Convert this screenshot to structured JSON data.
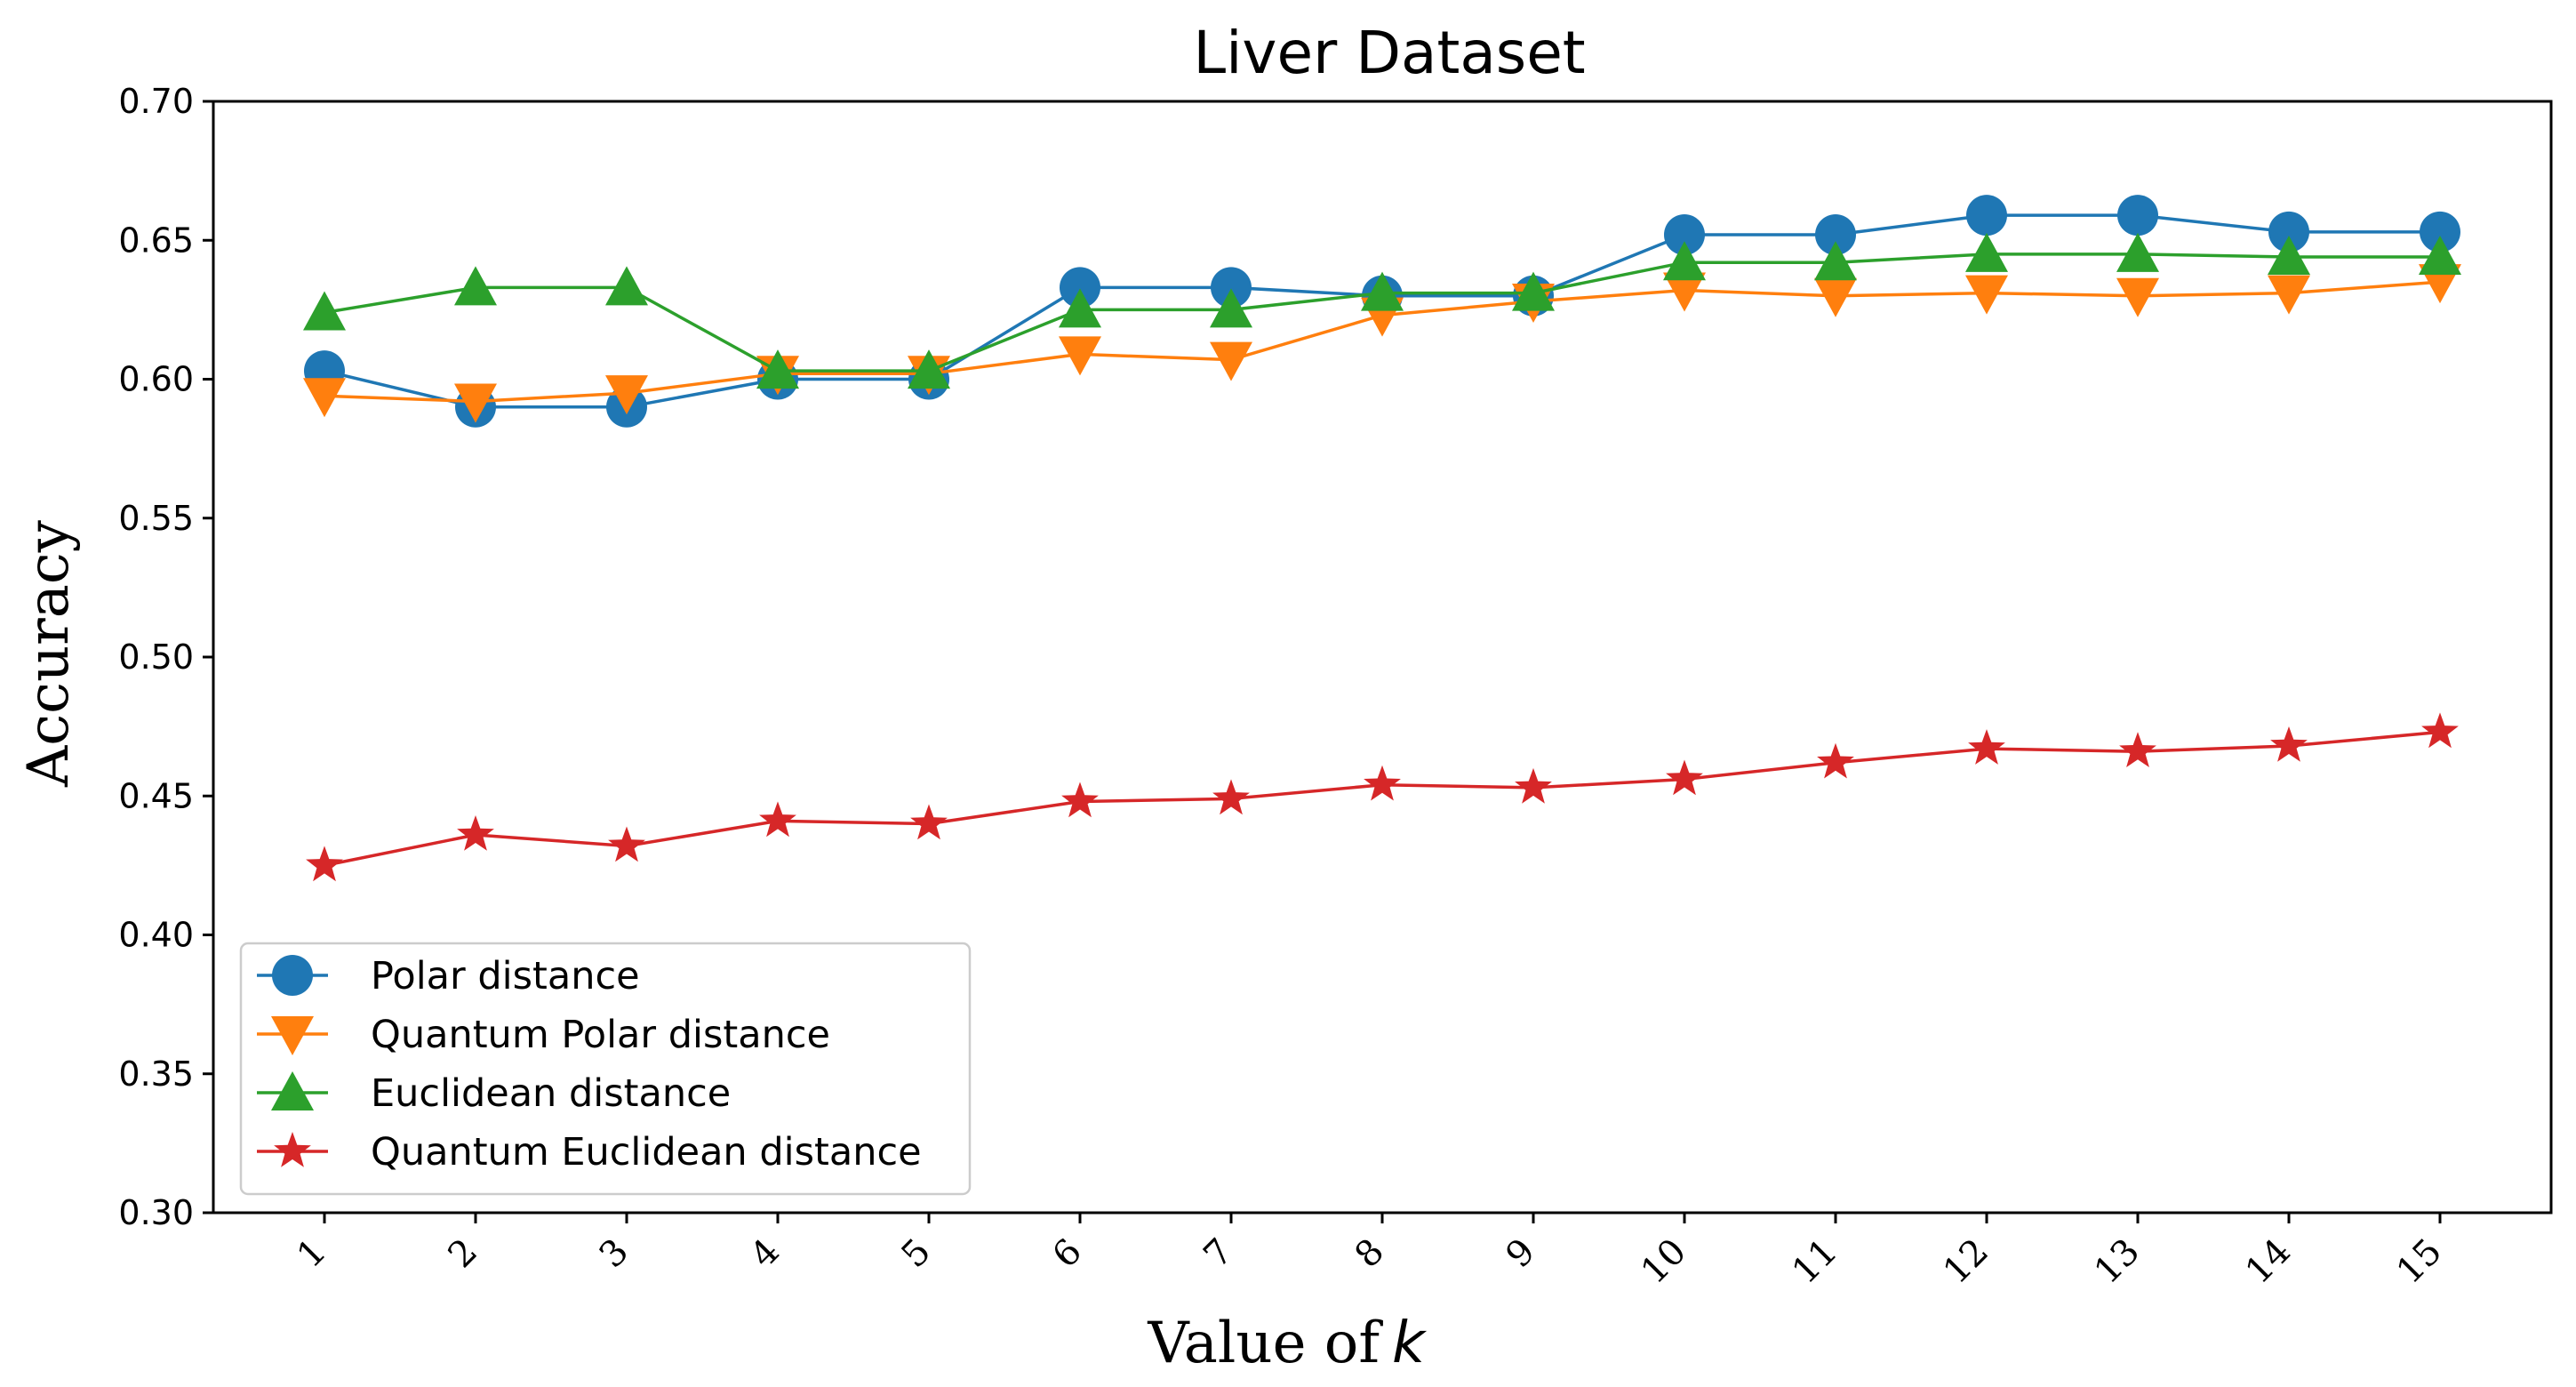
{
  "chart_data": {
    "type": "line",
    "title": "Liver Dataset",
    "xlabel": "Value of",
    "xlabel_var": "k",
    "ylabel": "Accuracy",
    "x": [
      1,
      2,
      3,
      4,
      5,
      6,
      7,
      8,
      9,
      10,
      11,
      12,
      13,
      14,
      15
    ],
    "xtick_labels": [
      "1",
      "2",
      "3",
      "4",
      "5",
      "6",
      "7",
      "8",
      "9",
      "10",
      "11",
      "12",
      "13",
      "14",
      "15"
    ],
    "ylim": [
      0.3,
      0.7
    ],
    "yticks": [
      0.3,
      0.35,
      0.4,
      0.45,
      0.5,
      0.55,
      0.6,
      0.65,
      0.7
    ],
    "ytick_labels": [
      "0.30",
      "0.35",
      "0.40",
      "0.45",
      "0.50",
      "0.55",
      "0.60",
      "0.65",
      "0.70"
    ],
    "grid": false,
    "legend_position": "lower-left",
    "series": [
      {
        "name": "Polar distance",
        "color": "#1f77b4",
        "marker": "circle",
        "values": [
          0.603,
          0.59,
          0.59,
          0.6,
          0.6,
          0.633,
          0.633,
          0.63,
          0.63,
          0.652,
          0.652,
          0.659,
          0.659,
          0.653,
          0.653
        ]
      },
      {
        "name": "Quantum Polar distance",
        "color": "#ff7f0e",
        "marker": "triangle-down",
        "values": [
          0.594,
          0.592,
          0.595,
          0.602,
          0.602,
          0.609,
          0.607,
          0.623,
          0.628,
          0.632,
          0.63,
          0.631,
          0.63,
          0.631,
          0.635
        ]
      },
      {
        "name": "Euclidean distance",
        "color": "#2ca02c",
        "marker": "triangle-up",
        "values": [
          0.624,
          0.633,
          0.633,
          0.603,
          0.603,
          0.625,
          0.625,
          0.631,
          0.631,
          0.642,
          0.642,
          0.645,
          0.645,
          0.644,
          0.644
        ]
      },
      {
        "name": "Quantum Euclidean distance",
        "color": "#d62728",
        "marker": "star",
        "values": [
          0.425,
          0.436,
          0.432,
          0.441,
          0.44,
          0.448,
          0.449,
          0.454,
          0.453,
          0.456,
          0.462,
          0.467,
          0.466,
          0.468,
          0.473
        ]
      }
    ]
  }
}
